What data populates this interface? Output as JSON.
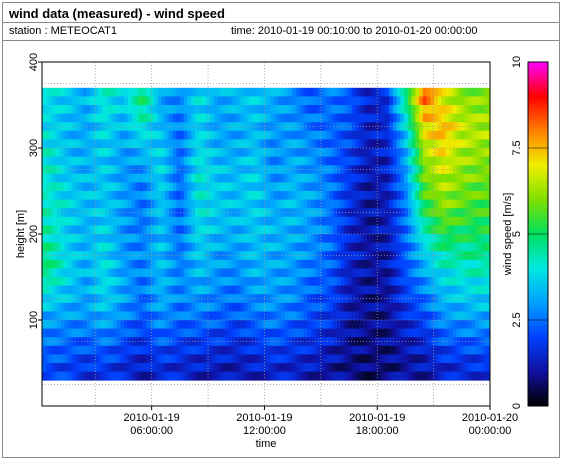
{
  "header": {
    "title": "wind data (measured) - wind speed",
    "station": "station : METEOCAT1",
    "timerange": "time: 2010-01-19 00:10:00 to 2010-01-20 00:00:00"
  },
  "chart_data": {
    "type": "heatmap",
    "title": "wind data (measured) - wind speed",
    "xlabel": "time",
    "ylabel": "height [m]",
    "colorbar_label": "wind speed [m/s]",
    "x_range": [
      "2010-01-19 00:10:00",
      "2010-01-20 00:00:00"
    ],
    "x_ticks": [
      {
        "value": "2010-01-19 06:00:00",
        "line1": "2010-01-19",
        "line2": "06:00:00"
      },
      {
        "value": "2010-01-19 12:00:00",
        "line1": "2010-01-19",
        "line2": "12:00:00"
      },
      {
        "value": "2010-01-19 18:00:00",
        "line1": "2010-01-19",
        "line2": "18:00:00"
      },
      {
        "value": "2010-01-20 00:00:00",
        "line1": "2010-01-20",
        "line2": "00:00:00"
      }
    ],
    "ylim": [
      0,
      400
    ],
    "y_ticks": [
      100,
      200,
      300,
      400
    ],
    "colorbar_range": [
      0,
      10
    ],
    "colorbar_ticks": [
      "0",
      "2.5",
      "5",
      "7.5",
      "10"
    ],
    "colorscale": [
      "#000000",
      "#1010a0",
      "#0040ff",
      "#00a0ff",
      "#00e8e0",
      "#00e060",
      "#80e000",
      "#f0f000",
      "#ff8000",
      "#ff0000",
      "#ff00ff"
    ],
    "heights": [
      40,
      60,
      80,
      100,
      120,
      140,
      160,
      180,
      200,
      220,
      240,
      260,
      280,
      300,
      320,
      340,
      360
    ],
    "hours": [
      0.5,
      1.5,
      2.5,
      3.5,
      4.5,
      5.5,
      6.5,
      7.5,
      8.5,
      9.5,
      10.5,
      11.5,
      12.5,
      13.5,
      14.5,
      15.5,
      16.5,
      17.5,
      18.5,
      19.5,
      20.5,
      21.5,
      22.5,
      23.5
    ],
    "values": [
      [
        2.0,
        2.3,
        2.6,
        3.0,
        3.6,
        4.2,
        4.8,
        4.6,
        4.4,
        4.3,
        4.2,
        4.1,
        4.2,
        4.0,
        3.8,
        3.8,
        3.9
      ],
      [
        1.9,
        2.2,
        2.5,
        2.9,
        3.3,
        3.6,
        3.8,
        3.7,
        3.6,
        3.7,
        3.8,
        3.6,
        3.5,
        3.4,
        3.4,
        3.5,
        3.6
      ],
      [
        1.6,
        2.0,
        2.4,
        2.8,
        3.0,
        3.1,
        3.2,
        3.3,
        3.2,
        3.3,
        3.4,
        3.3,
        3.2,
        3.2,
        3.1,
        3.1,
        3.3
      ],
      [
        1.8,
        2.2,
        2.6,
        3.2,
        3.6,
        3.8,
        3.9,
        3.8,
        3.7,
        3.6,
        3.5,
        3.6,
        3.6,
        3.7,
        3.8,
        4.0,
        4.2
      ],
      [
        1.5,
        1.8,
        2.2,
        2.7,
        3.0,
        3.1,
        3.0,
        2.9,
        2.9,
        3.0,
        3.1,
        3.0,
        2.9,
        3.0,
        3.2,
        3.4,
        3.6
      ],
      [
        1.2,
        1.5,
        1.8,
        2.1,
        2.4,
        2.5,
        2.6,
        2.7,
        2.6,
        2.5,
        2.5,
        2.7,
        3.0,
        3.4,
        4.0,
        4.6,
        5.0
      ],
      [
        1.6,
        1.9,
        2.4,
        2.8,
        3.2,
        3.3,
        3.4,
        3.5,
        3.4,
        3.5,
        3.6,
        3.7,
        3.8,
        3.6,
        3.4,
        3.2,
        3.0
      ],
      [
        1.4,
        1.7,
        2.0,
        2.4,
        2.6,
        2.7,
        2.6,
        2.5,
        2.4,
        2.4,
        2.3,
        2.3,
        2.4,
        2.4,
        2.5,
        2.6,
        2.8
      ],
      [
        1.3,
        1.6,
        2.0,
        2.5,
        2.9,
        3.2,
        3.4,
        3.6,
        3.8,
        3.9,
        4.0,
        4.1,
        4.0,
        3.9,
        3.8,
        3.8,
        3.9
      ],
      [
        1.2,
        1.5,
        1.9,
        2.3,
        2.6,
        2.8,
        3.0,
        3.1,
        3.3,
        3.5,
        3.6,
        3.5,
        3.4,
        3.2,
        3.1,
        3.0,
        3.1
      ],
      [
        1.1,
        1.4,
        1.7,
        2.1,
        2.4,
        2.6,
        2.8,
        3.0,
        3.2,
        3.3,
        3.4,
        3.4,
        3.3,
        3.2,
        3.1,
        3.2,
        3.4
      ],
      [
        1.3,
        1.6,
        2.0,
        2.4,
        2.8,
        3.1,
        3.3,
        3.4,
        3.5,
        3.6,
        3.7,
        3.7,
        3.6,
        3.5,
        3.4,
        3.5,
        3.6
      ],
      [
        1.4,
        1.8,
        2.2,
        2.6,
        2.9,
        3.0,
        3.1,
        3.2,
        3.3,
        3.2,
        3.0,
        2.9,
        2.8,
        2.8,
        2.9,
        3.0,
        3.2
      ],
      [
        1.3,
        1.6,
        2.0,
        2.4,
        2.7,
        2.9,
        3.0,
        3.1,
        3.2,
        3.3,
        3.4,
        3.3,
        3.2,
        3.1,
        3.0,
        2.9,
        2.8
      ],
      [
        1.2,
        1.5,
        1.8,
        2.0,
        2.2,
        2.4,
        2.6,
        2.8,
        2.9,
        3.0,
        3.1,
        3.0,
        2.9,
        2.8,
        2.6,
        2.4,
        2.3
      ],
      [
        1.0,
        1.2,
        1.5,
        1.8,
        2.0,
        2.2,
        2.3,
        2.4,
        2.5,
        2.5,
        2.6,
        2.6,
        2.5,
        2.4,
        2.4,
        2.5,
        2.6
      ],
      [
        0.8,
        0.9,
        1.0,
        1.1,
        1.2,
        1.3,
        1.4,
        1.5,
        1.5,
        1.6,
        1.7,
        1.8,
        1.9,
        2.0,
        2.1,
        2.2,
        2.3
      ],
      [
        0.7,
        0.8,
        0.8,
        0.9,
        0.9,
        1.0,
        1.0,
        1.1,
        1.0,
        1.0,
        1.1,
        1.1,
        1.2,
        1.2,
        1.3,
        1.4,
        1.4
      ],
      [
        0.8,
        0.8,
        0.9,
        0.9,
        1.0,
        1.0,
        1.1,
        1.1,
        1.2,
        1.2,
        1.2,
        1.3,
        1.3,
        1.4,
        1.5,
        1.5,
        1.6
      ],
      [
        1.0,
        1.1,
        1.3,
        1.5,
        1.8,
        2.0,
        2.2,
        2.3,
        2.4,
        2.5,
        2.6,
        2.8,
        3.0,
        3.2,
        3.6,
        4.2,
        4.8
      ],
      [
        1.1,
        1.3,
        1.6,
        2.0,
        2.4,
        2.8,
        3.2,
        3.6,
        4.2,
        4.8,
        5.4,
        5.8,
        6.0,
        6.4,
        7.0,
        7.6,
        8.4
      ],
      [
        1.4,
        1.8,
        2.3,
        2.8,
        3.2,
        3.6,
        4.0,
        4.6,
        5.2,
        5.8,
        6.2,
        6.4,
        6.8,
        7.2,
        7.6,
        7.2,
        6.8
      ],
      [
        1.5,
        1.9,
        2.4,
        2.9,
        3.4,
        3.8,
        4.2,
        4.6,
        5.0,
        5.4,
        5.8,
        6.0,
        6.2,
        6.4,
        6.6,
        6.4,
        6.0
      ],
      [
        1.6,
        2.0,
        2.5,
        3.0,
        3.5,
        3.9,
        4.3,
        4.7,
        5.0,
        5.3,
        5.6,
        5.8,
        6.0,
        6.2,
        6.4,
        6.2,
        6.0
      ]
    ]
  }
}
